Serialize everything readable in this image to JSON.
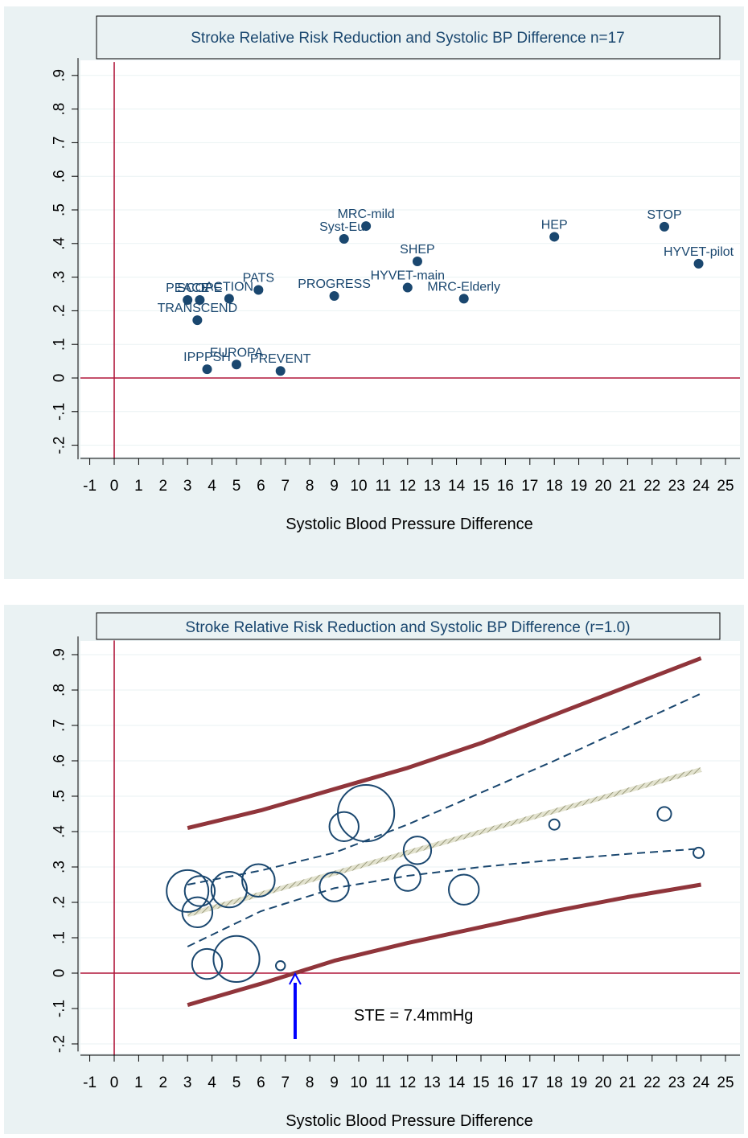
{
  "chart_data": [
    {
      "type": "scatter",
      "title": "Stroke Relative Risk Reduction and Systolic BP Difference n=17",
      "xlabel": "Systolic Blood Pressure Difference",
      "ylabel": "",
      "xlim": [
        -1.7,
        25.2
      ],
      "ylim": [
        -0.23,
        0.94
      ],
      "x_ticks": [
        "-1",
        "0",
        "1",
        "2",
        "3",
        "4",
        "5",
        "6",
        "7",
        "8",
        "9",
        "10",
        "11",
        "12",
        "13",
        "14",
        "15",
        "16",
        "17",
        "18",
        "19",
        "20",
        "21",
        "22",
        "23",
        "24",
        "25"
      ],
      "y_ticks": [
        "-.2",
        "-.1",
        "0",
        ".1",
        ".2",
        ".3",
        ".4",
        ".5",
        ".6",
        ".7",
        ".8",
        ".9"
      ],
      "reference_lines": {
        "x": 0,
        "y": 0,
        "color": "#b0173a"
      },
      "marker_color": "#1a476f",
      "points": [
        {
          "label": "PEACE",
          "x": 3.0,
          "y": 0.232
        },
        {
          "label": "SCOPE",
          "x": 3.5,
          "y": 0.232
        },
        {
          "label": "TRANSCEND",
          "x": 3.4,
          "y": 0.172
        },
        {
          "label": "IPPPSH",
          "x": 3.8,
          "y": 0.026
        },
        {
          "label": "ACTION",
          "x": 4.7,
          "y": 0.236
        },
        {
          "label": "EUROPA",
          "x": 5.0,
          "y": 0.04
        },
        {
          "label": "PATS",
          "x": 5.9,
          "y": 0.262
        },
        {
          "label": "PREVENT",
          "x": 6.8,
          "y": 0.021
        },
        {
          "label": "PROGRESS",
          "x": 9.0,
          "y": 0.244
        },
        {
          "label": "Syst-Eur",
          "x": 9.4,
          "y": 0.414
        },
        {
          "label": "MRC-mild",
          "x": 10.3,
          "y": 0.452
        },
        {
          "label": "HYVET-main",
          "x": 12.0,
          "y": 0.269
        },
        {
          "label": "SHEP",
          "x": 12.4,
          "y": 0.347
        },
        {
          "label": "MRC-Elderly",
          "x": 14.3,
          "y": 0.236
        },
        {
          "label": "HEP",
          "x": 18.0,
          "y": 0.42
        },
        {
          "label": "STOP",
          "x": 22.5,
          "y": 0.45
        },
        {
          "label": "HYVET-pilot",
          "x": 23.9,
          "y": 0.34
        }
      ]
    },
    {
      "type": "scatter",
      "title": "Stroke Relative Risk Reduction and Systolic BP Difference (r=1.0)",
      "xlabel": "Systolic Blood Pressure Difference",
      "ylabel": "",
      "xlim": [
        -1.7,
        25.2
      ],
      "ylim": [
        -0.21,
        0.94
      ],
      "x_ticks": [
        "-1",
        "0",
        "1",
        "2",
        "3",
        "4",
        "5",
        "6",
        "7",
        "8",
        "9",
        "10",
        "11",
        "12",
        "13",
        "14",
        "15",
        "16",
        "17",
        "18",
        "19",
        "20",
        "21",
        "22",
        "23",
        "24",
        "25"
      ],
      "y_ticks": [
        "-.2",
        "-.1",
        "0",
        ".1",
        ".2",
        ".3",
        ".4",
        ".5",
        ".6",
        ".7",
        ".8",
        ".9"
      ],
      "reference_lines": {
        "x": 0,
        "y": 0,
        "color": "#b0173a"
      },
      "marker_color": "#1a476f",
      "bubbles": [
        {
          "x": 3.0,
          "y": 0.232,
          "weight": 1.0
        },
        {
          "x": 3.5,
          "y": 0.232,
          "weight": 0.72
        },
        {
          "x": 3.4,
          "y": 0.172,
          "weight": 0.72
        },
        {
          "x": 3.8,
          "y": 0.026,
          "weight": 0.72
        },
        {
          "x": 4.7,
          "y": 0.236,
          "weight": 0.85
        },
        {
          "x": 5.0,
          "y": 0.04,
          "weight": 1.1
        },
        {
          "x": 5.9,
          "y": 0.262,
          "weight": 0.78
        },
        {
          "x": 6.8,
          "y": 0.021,
          "weight": 0.22
        },
        {
          "x": 9.0,
          "y": 0.244,
          "weight": 0.7
        },
        {
          "x": 9.4,
          "y": 0.414,
          "weight": 0.7
        },
        {
          "x": 10.3,
          "y": 0.452,
          "weight": 1.35
        },
        {
          "x": 12.0,
          "y": 0.269,
          "weight": 0.62
        },
        {
          "x": 12.4,
          "y": 0.347,
          "weight": 0.66
        },
        {
          "x": 14.3,
          "y": 0.236,
          "weight": 0.72
        },
        {
          "x": 18.0,
          "y": 0.42,
          "weight": 0.25
        },
        {
          "x": 22.5,
          "y": 0.45,
          "weight": 0.33
        },
        {
          "x": 23.9,
          "y": 0.34,
          "weight": 0.25
        }
      ],
      "series": [
        {
          "style": "fit-hatched",
          "color": "#8a8a6a",
          "x": [
            3.0,
            24.0
          ],
          "y": [
            0.165,
            0.575
          ]
        },
        {
          "style": "ci-dashed",
          "color": "#1a476f",
          "x": [
            3,
            6,
            9,
            12,
            15,
            18,
            21,
            24
          ],
          "y": [
            0.25,
            0.29,
            0.34,
            0.42,
            0.51,
            0.6,
            0.695,
            0.79
          ]
        },
        {
          "style": "ci-dashed",
          "color": "#1a476f",
          "x": [
            3,
            6,
            9,
            12,
            15,
            18,
            21,
            24
          ],
          "y": [
            0.075,
            0.175,
            0.24,
            0.275,
            0.3,
            0.32,
            0.337,
            0.352
          ]
        },
        {
          "style": "pi-thick",
          "color": "#90353b",
          "x": [
            3,
            6,
            9,
            12,
            15,
            18,
            21,
            24
          ],
          "y": [
            0.41,
            0.46,
            0.52,
            0.58,
            0.65,
            0.73,
            0.81,
            0.89
          ]
        },
        {
          "style": "pi-thick",
          "color": "#90353b",
          "x": [
            3,
            6,
            9,
            12,
            15,
            18,
            21,
            24
          ],
          "y": [
            -0.09,
            -0.03,
            0.035,
            0.085,
            0.13,
            0.175,
            0.215,
            0.25
          ]
        }
      ],
      "annotation": {
        "text": "STE = 7.4mmHg",
        "x": 7.4,
        "arrow_color": "#0000ff"
      }
    }
  ]
}
